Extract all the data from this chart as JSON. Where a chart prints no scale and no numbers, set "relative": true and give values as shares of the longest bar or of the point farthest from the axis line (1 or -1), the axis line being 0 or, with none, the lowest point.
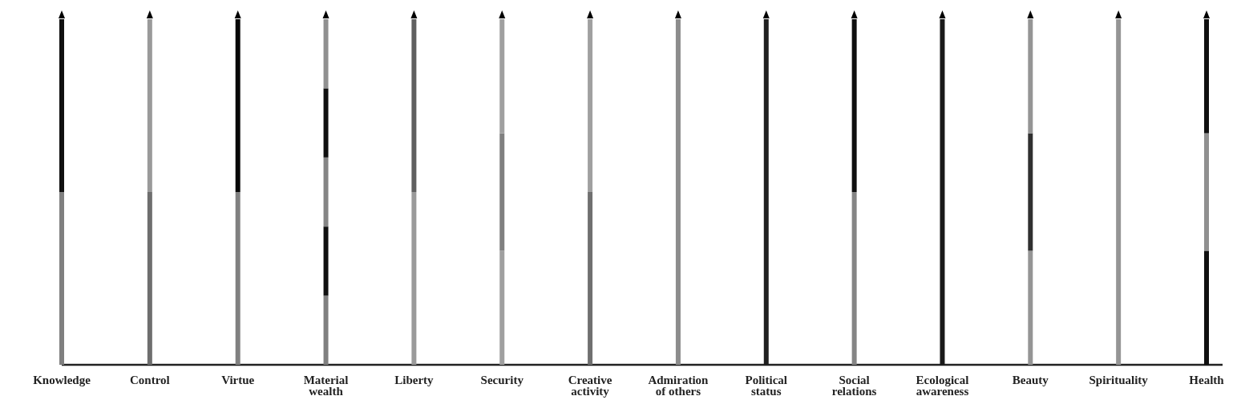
{
  "chart_data": {
    "type": "bar",
    "stacked": true,
    "relative": true,
    "categories": [
      "Knowledge",
      "Control",
      "Virtue",
      "Material wealth",
      "Liberty",
      "Security",
      "Creative activity",
      "Admiration of others",
      "Political status",
      "Social relations",
      "Ecological awareness",
      "Beauty",
      "Spirituality",
      "Health"
    ],
    "series": [
      {
        "values": [
          0.5,
          0.5,
          0.5,
          0.2,
          0.5,
          0.33,
          0.5,
          1,
          1,
          0.5,
          1,
          0.33,
          1,
          0.33
        ],
        "colors": [
          "#808080",
          "#6e6e6e",
          "#808080",
          "#808080",
          "#9a9a9a",
          "#a0a0a0",
          "#707070",
          "#8c8c8c",
          "#202020",
          "#858585",
          "#1a1a1a",
          "#959595",
          "#959595",
          "#101010"
        ]
      },
      {
        "values": [
          0.5,
          0.5,
          0.5,
          0.2,
          0.5,
          0.34,
          0.5,
          null,
          null,
          0.5,
          null,
          0.34,
          null,
          0.34
        ],
        "colors": [
          "#101010",
          "#9a9a9a",
          "#080808",
          "#101010",
          "#606060",
          "#808080",
          "#a0a0a0",
          null,
          null,
          "#101010",
          null,
          "#303030",
          null,
          "#909090"
        ]
      },
      {
        "values": [
          null,
          null,
          null,
          0.2,
          null,
          0.33,
          null,
          null,
          null,
          null,
          null,
          0.33,
          null,
          0.33
        ],
        "colors": [
          null,
          null,
          null,
          "#858585",
          null,
          "#a0a0a0",
          null,
          null,
          null,
          null,
          null,
          "#959595",
          null,
          "#101010"
        ]
      },
      {
        "values": [
          null,
          null,
          null,
          0.2,
          null,
          null,
          null,
          null,
          null,
          null,
          null,
          null,
          null,
          null
        ],
        "colors": [
          null,
          null,
          null,
          "#101010",
          null,
          null,
          null,
          null,
          null,
          null,
          null,
          null,
          null,
          null
        ]
      },
      {
        "values": [
          null,
          null,
          null,
          0.2,
          null,
          null,
          null,
          null,
          null,
          null,
          null,
          null,
          null,
          null
        ],
        "colors": [
          null,
          null,
          null,
          "#909090",
          null,
          null,
          null,
          null,
          null,
          null,
          null,
          null,
          null,
          null
        ]
      }
    ]
  }
}
